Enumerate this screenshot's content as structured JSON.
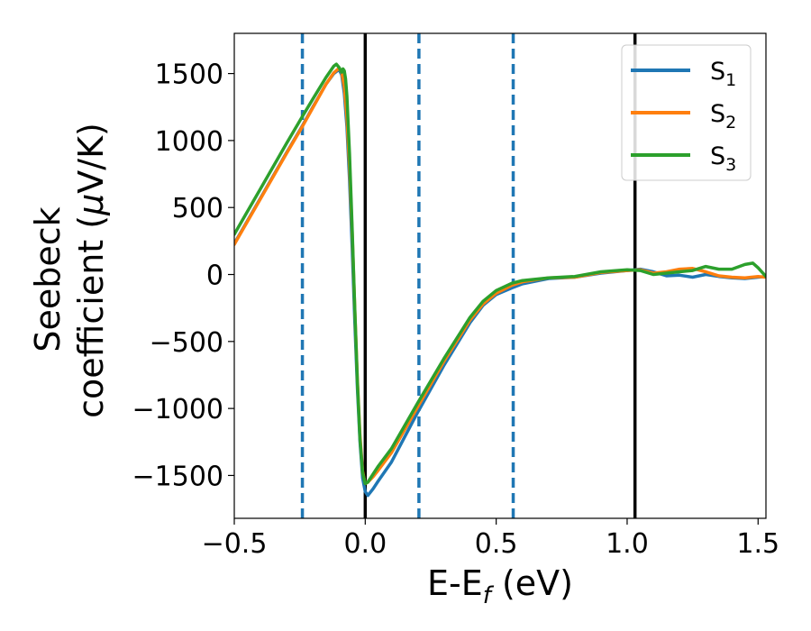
{
  "chart_data": {
    "type": "line",
    "xlabel": "E-E",
    "xlabel_sub": "f",
    "xlabel_suffix": " (eV)",
    "ylabel_line1": "Seebeck",
    "ylabel_line2": "coefficient  (",
    "ylabel_mu": "μ",
    "ylabel_suffix": "V/K)",
    "xlim": [
      -0.5,
      1.53
    ],
    "ylim": [
      -1820,
      1800
    ],
    "x_ticks": [
      -0.5,
      0.0,
      0.5,
      1.0,
      1.5
    ],
    "x_tick_labels": [
      "−0.5",
      "0.0",
      "0.5",
      "1.0",
      "1.5"
    ],
    "y_ticks": [
      -1500,
      -1000,
      -500,
      0,
      500,
      1000,
      1500
    ],
    "y_tick_labels": [
      "−1500",
      "−1000",
      "−500",
      "0",
      "500",
      "1000",
      "1500"
    ],
    "grid": false,
    "legend_position": "top-right",
    "vlines_solid": [
      0.0,
      1.03
    ],
    "vlines_dashed": [
      -0.24,
      0.205,
      0.565
    ],
    "colors": {
      "S1": "#1f77b4",
      "S2": "#ff7f0e",
      "S3": "#2ca02c",
      "solid_line": "#000000",
      "dashed_line": "#1f77b4"
    },
    "series": [
      {
        "name": "S",
        "sub": "1",
        "color": "#1f77b4",
        "x": [
          -0.5,
          -0.4,
          -0.3,
          -0.24,
          -0.2,
          -0.15,
          -0.12,
          -0.1,
          -0.09,
          -0.08,
          -0.07,
          -0.06,
          -0.05,
          -0.04,
          -0.03,
          -0.02,
          -0.01,
          0.0,
          0.01,
          0.03,
          0.05,
          0.1,
          0.2,
          0.3,
          0.4,
          0.45,
          0.5,
          0.56,
          0.6,
          0.7,
          0.8,
          0.9,
          1.0,
          1.05,
          1.1,
          1.15,
          1.2,
          1.25,
          1.3,
          1.35,
          1.4,
          1.45,
          1.5,
          1.53
        ],
        "y": [
          230,
          570,
          910,
          1110,
          1250,
          1420,
          1500,
          1530,
          1490,
          1350,
          1100,
          700,
          200,
          -350,
          -850,
          -1250,
          -1520,
          -1620,
          -1650,
          -1600,
          -1540,
          -1400,
          -1030,
          -680,
          -360,
          -230,
          -150,
          -100,
          -70,
          -30,
          -20,
          10,
          30,
          40,
          20,
          -10,
          -5,
          -20,
          0,
          -15,
          -25,
          -30,
          -20,
          -15
        ]
      },
      {
        "name": "S",
        "sub": "2",
        "color": "#ff7f0e",
        "x": [
          -0.5,
          -0.4,
          -0.3,
          -0.24,
          -0.2,
          -0.15,
          -0.12,
          -0.1,
          -0.09,
          -0.08,
          -0.07,
          -0.06,
          -0.05,
          -0.04,
          -0.03,
          -0.02,
          -0.01,
          0.0,
          0.01,
          0.03,
          0.05,
          0.1,
          0.2,
          0.3,
          0.4,
          0.45,
          0.5,
          0.56,
          0.6,
          0.7,
          0.8,
          0.9,
          1.0,
          1.05,
          1.1,
          1.15,
          1.2,
          1.25,
          1.3,
          1.35,
          1.4,
          1.45,
          1.5,
          1.53
        ],
        "y": [
          225,
          565,
          905,
          1105,
          1245,
          1420,
          1505,
          1540,
          1510,
          1400,
          1170,
          800,
          320,
          -250,
          -780,
          -1200,
          -1470,
          -1560,
          -1550,
          -1510,
          -1460,
          -1330,
          -990,
          -650,
          -340,
          -220,
          -140,
          -80,
          -55,
          -25,
          -20,
          15,
          30,
          35,
          10,
          20,
          40,
          45,
          20,
          -10,
          -20,
          -25,
          -15,
          -20
        ]
      },
      {
        "name": "S",
        "sub": "3",
        "color": "#2ca02c",
        "x": [
          -0.5,
          -0.4,
          -0.3,
          -0.24,
          -0.2,
          -0.15,
          -0.12,
          -0.11,
          -0.1,
          -0.09,
          -0.085,
          -0.08,
          -0.075,
          -0.07,
          -0.06,
          -0.05,
          -0.04,
          -0.03,
          -0.02,
          -0.01,
          0.0,
          0.01,
          0.03,
          0.05,
          0.1,
          0.2,
          0.3,
          0.4,
          0.45,
          0.5,
          0.56,
          0.6,
          0.7,
          0.8,
          0.9,
          1.0,
          1.05,
          1.1,
          1.15,
          1.2,
          1.25,
          1.3,
          1.35,
          1.4,
          1.45,
          1.48,
          1.5,
          1.53
        ],
        "y": [
          300,
          640,
          980,
          1180,
          1310,
          1470,
          1555,
          1570,
          1545,
          1510,
          1535,
          1520,
          1460,
          1330,
          900,
          350,
          -250,
          -800,
          -1230,
          -1480,
          -1560,
          -1550,
          -1490,
          -1430,
          -1300,
          -960,
          -630,
          -320,
          -200,
          -120,
          -65,
          -45,
          -25,
          -15,
          20,
          35,
          30,
          0,
          10,
          20,
          30,
          60,
          40,
          40,
          75,
          85,
          50,
          -15
        ]
      }
    ]
  }
}
